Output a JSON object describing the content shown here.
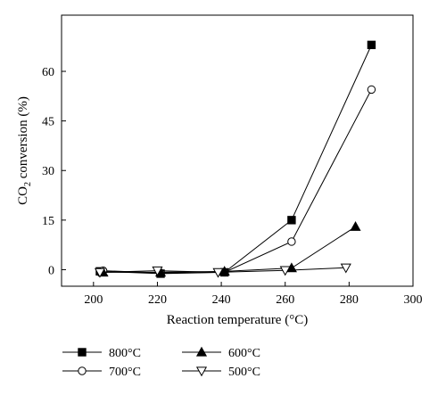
{
  "chart_data": {
    "type": "line",
    "xlabel": "Reaction temperature (°C)",
    "ylabel_main": "CO",
    "ylabel_sub": "2",
    "ylabel_rest": " conversion (%)",
    "xlim": [
      190,
      300
    ],
    "ylim": [
      -5,
      77
    ],
    "xticks": [
      200,
      220,
      240,
      260,
      280,
      300
    ],
    "yticks": [
      0,
      15,
      30,
      45,
      60
    ],
    "grid": false,
    "legend_placement": "bottom",
    "series": [
      {
        "name": "800°C",
        "marker": "square-filled",
        "color": "#000000",
        "x": [
          202,
          221,
          241,
          262,
          287
        ],
        "y": [
          -0.5,
          -1.2,
          -0.8,
          15.0,
          68.0
        ]
      },
      {
        "name": "700°C",
        "marker": "circle-open",
        "color": "#000000",
        "x": [
          203,
          221,
          241,
          262,
          287
        ],
        "y": [
          -0.3,
          -1.0,
          -0.8,
          8.5,
          54.5
        ]
      },
      {
        "name": "600°C",
        "marker": "triangle-up-filled",
        "color": "#000000",
        "x": [
          203,
          221,
          241,
          262,
          282
        ],
        "y": [
          -0.8,
          -0.8,
          -0.5,
          0.5,
          13.0
        ]
      },
      {
        "name": "500°C",
        "marker": "triangle-down-open",
        "color": "#000000",
        "x": [
          202,
          220,
          239,
          260,
          279
        ],
        "y": [
          -0.8,
          -0.3,
          -0.8,
          -0.2,
          0.6
        ]
      }
    ]
  }
}
